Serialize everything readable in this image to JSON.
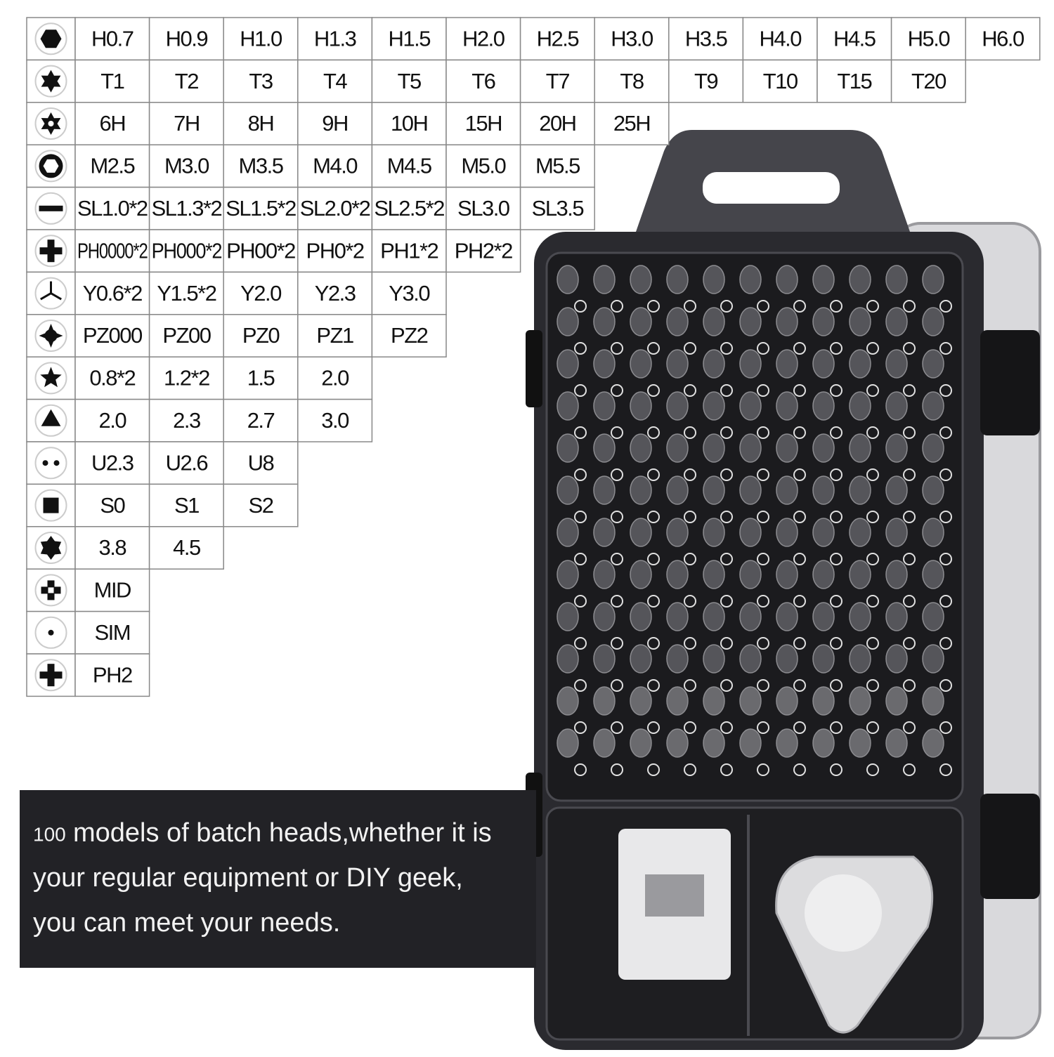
{
  "table": {
    "rows": [
      [
        "H0.7",
        "H0.9",
        "H1.0",
        "H1.3",
        "H1.5",
        "H2.0",
        "H2.5",
        "H3.0",
        "H3.5",
        "H4.0",
        "H4.5",
        "H5.0",
        "H6.0"
      ],
      [
        "T1",
        "T2",
        "T3",
        "T4",
        "T5",
        "T6",
        "T7",
        "T8",
        "T9",
        "T10",
        "T15",
        "T20"
      ],
      [
        "6H",
        "7H",
        "8H",
        "9H",
        "10H",
        "15H",
        "20H",
        "25H"
      ],
      [
        "M2.5",
        "M3.0",
        "M3.5",
        "M4.0",
        "M4.5",
        "M5.0",
        "M5.5"
      ],
      [
        "SL1.0*2",
        "SL1.3*2",
        "SL1.5*2",
        "SL2.0*2",
        "SL2.5*2",
        "SL3.0",
        "SL3.5"
      ],
      [
        "PH0000*2",
        "PH000*2",
        "PH00*2",
        "PH0*2",
        "PH1*2",
        "PH2*2"
      ],
      [
        "Y0.6*2",
        "Y1.5*2",
        "Y2.0",
        "Y2.3",
        "Y3.0"
      ],
      [
        "PZ000",
        "PZ00",
        "PZ0",
        "PZ1",
        "PZ2"
      ],
      [
        "0.8*2",
        "1.2*2",
        "1.5",
        "2.0"
      ],
      [
        "2.0",
        "2.3",
        "2.7",
        "3.0"
      ],
      [
        "U2.3",
        "U2.6",
        "U8"
      ],
      [
        "S0",
        "S1",
        "S2"
      ],
      [
        "3.8",
        "4.5"
      ],
      [
        "MID"
      ],
      [
        "SIM"
      ],
      [
        "PH2"
      ]
    ]
  },
  "banner": {
    "number": "100",
    "lines": [
      "models of batch heads,whether it is",
      "your regular equipment or DIY geek,",
      "you can meet your needs."
    ]
  }
}
